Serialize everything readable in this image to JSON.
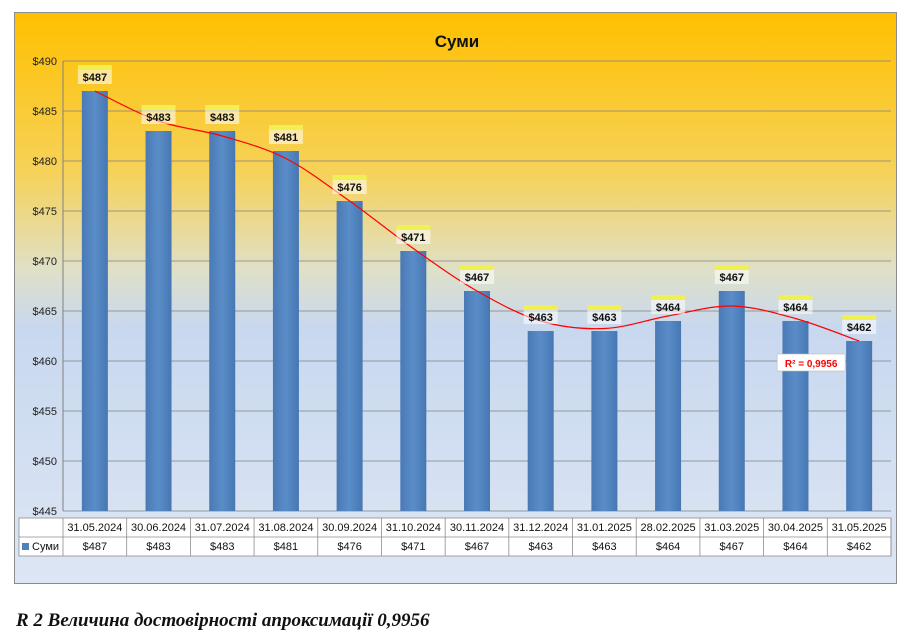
{
  "chart_data": {
    "type": "bar",
    "title": "Суми",
    "series": [
      {
        "name": "Суми",
        "values": [
          487,
          483,
          483,
          481,
          476,
          471,
          467,
          463,
          463,
          464,
          467,
          464,
          462
        ],
        "labels": [
          "$487",
          "$483",
          "$483",
          "$481",
          "$476",
          "$471",
          "$467",
          "$463",
          "$463",
          "$464",
          "$467",
          "$464",
          "$462"
        ]
      }
    ],
    "categories": [
      "31.05.2024",
      "30.06.2024",
      "31.07.2024",
      "31.08.2024",
      "30.09.2024",
      "31.10.2024",
      "30.11.2024",
      "31.12.2024",
      "31.01.2025",
      "28.02.2025",
      "31.03.2025",
      "30.04.2025",
      "31.05.2025"
    ],
    "ylim": [
      445,
      490
    ],
    "yticks": [
      445,
      450,
      455,
      460,
      465,
      470,
      475,
      480,
      485,
      490
    ],
    "ytick_labels": [
      "$445",
      "$450",
      "$455",
      "$460",
      "$465",
      "$470",
      "$475",
      "$480",
      "$485",
      "$490"
    ],
    "trendline": {
      "type": "polynomial",
      "r2_label": "R² = 0,9956"
    },
    "data_table": true,
    "grid": true,
    "colors": {
      "bar": "#4f81bd",
      "trend": "#ff0000",
      "label_tag": "#f0f050",
      "r2_text": "#ff0000"
    }
  },
  "caption": "R 2 Величина достовірності апроксимації 0,9956"
}
